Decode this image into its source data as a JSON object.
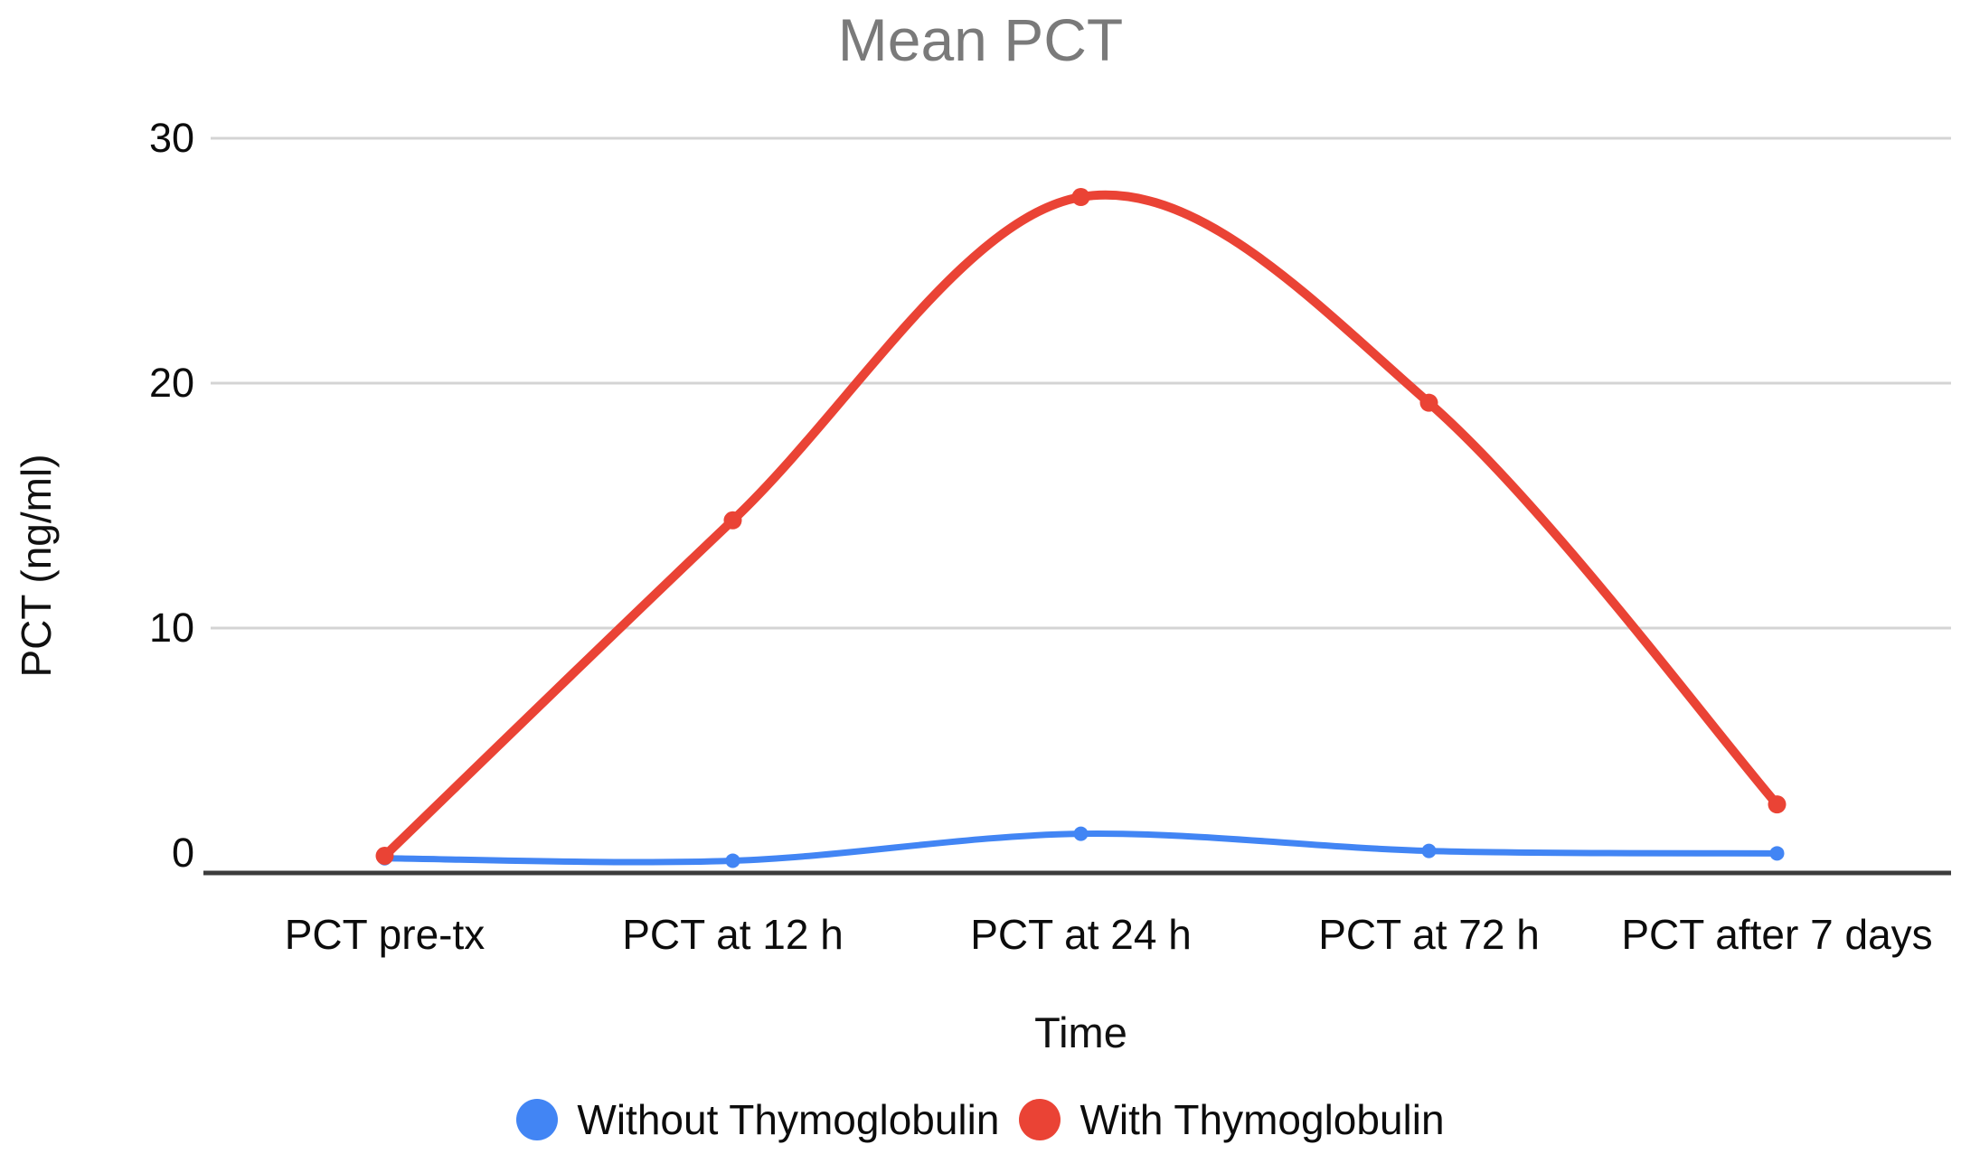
{
  "chart_data": {
    "type": "line",
    "title": "Mean PCT",
    "xlabel": "Time",
    "ylabel": "PCT (ng/ml)",
    "categories": [
      "PCT pre-tx",
      "PCT at 12 h",
      "PCT at 24 h",
      "PCT at 72 h",
      "PCT after 7 days"
    ],
    "series": [
      {
        "name": "Without Thymoglobulin",
        "color": "#4285F4",
        "values": [
          0.6,
          0.5,
          1.6,
          0.9,
          0.8
        ]
      },
      {
        "name": "With Thymoglobulin",
        "color": "#EA4335",
        "values": [
          0.7,
          14.4,
          27.6,
          19.2,
          2.8
        ]
      }
    ],
    "ylim": [
      0,
      30
    ],
    "y_ticks": [
      0,
      10,
      20,
      30
    ],
    "grid": true,
    "line_style": "smooth",
    "legend_position": "bottom",
    "style": {
      "title_color": "#7a7a7a",
      "grid_color": "#d4d4d4",
      "axis_color": "#3c3c3c",
      "text_color": "#0c0c0c"
    }
  }
}
